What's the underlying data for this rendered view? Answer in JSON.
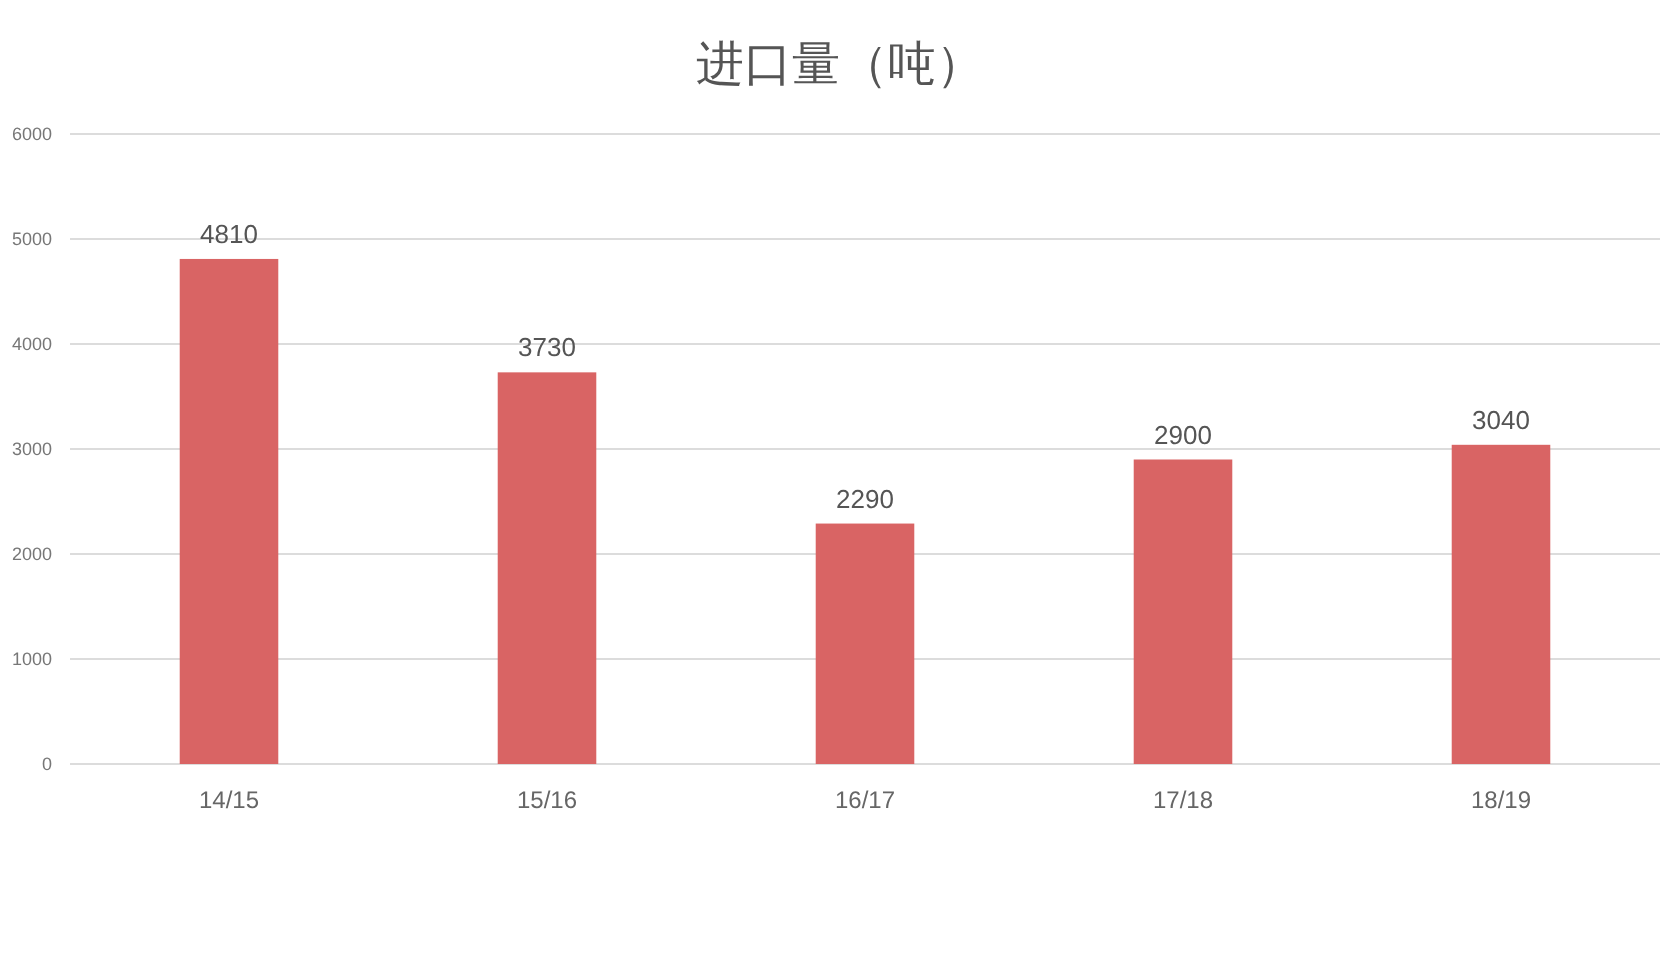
{
  "chart_data": {
    "type": "bar",
    "title": "进口量（吨）",
    "categories": [
      "14/15",
      "15/16",
      "16/17",
      "17/18",
      "18/19"
    ],
    "values": [
      4810,
      3730,
      2290,
      2900,
      3040
    ],
    "color": "#d96464",
    "ylim": [
      0,
      6000
    ],
    "yticks": [
      0,
      1000,
      2000,
      3000,
      4000,
      5000,
      6000
    ],
    "grid": "y",
    "data_labels": true
  }
}
